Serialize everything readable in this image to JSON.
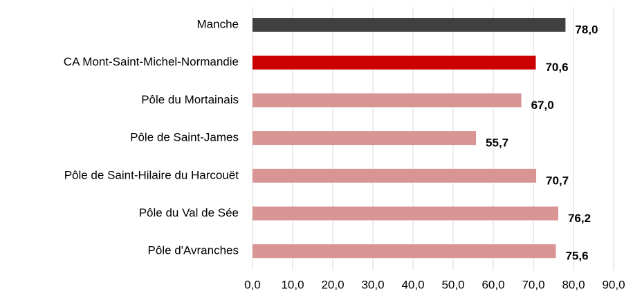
{
  "chart_data": {
    "type": "barh",
    "categories": [
      "Manche",
      "CA Mont-Saint-Michel-Normandie",
      "Pôle du Mortainais",
      "Pôle de Saint-James",
      "Pôle de Saint-Hilaire du Harcouët",
      "Pôle du Val de Sée",
      "Pôle d'Avranches"
    ],
    "values": [
      78.0,
      70.6,
      67.0,
      55.7,
      70.7,
      76.2,
      75.6
    ],
    "value_labels": [
      "78,0",
      "70,6",
      "67,0",
      "55,7",
      "70,7",
      "76,2",
      "75,6"
    ],
    "colors": [
      "#404040",
      "#cc0000",
      "#d99594",
      "#d99594",
      "#d99594",
      "#d99594",
      "#d99594"
    ],
    "xlim": [
      0,
      90
    ],
    "xticks": [
      {
        "value": 0,
        "label": "0,0"
      },
      {
        "value": 10,
        "label": "10,0"
      },
      {
        "value": 20,
        "label": "20,0"
      },
      {
        "value": 30,
        "label": "30,0"
      },
      {
        "value": 40,
        "label": "40,0"
      },
      {
        "value": 50,
        "label": "50,0"
      },
      {
        "value": 60,
        "label": "60,0"
      },
      {
        "value": 70,
        "label": "70,0"
      },
      {
        "value": 80,
        "label": "80,0"
      },
      {
        "value": 90,
        "label": "90,0"
      }
    ],
    "grid": true
  }
}
